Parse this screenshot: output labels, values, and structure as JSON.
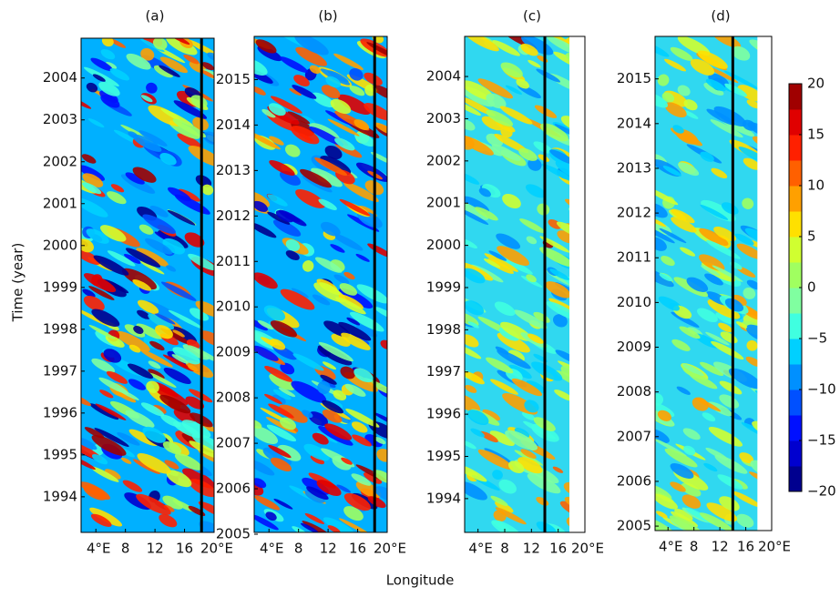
{
  "chart_data": [
    {
      "type": "hovmoller",
      "title": "(a)",
      "xlim": [
        2,
        20
      ],
      "ylim": [
        1993.15,
        2004.95
      ],
      "xticks": [
        {
          "value": 4,
          "label": "4°E"
        },
        8,
        12,
        16,
        {
          "value": 20,
          "label": "20°E"
        }
      ],
      "yticks": [
        1994,
        1995,
        1996,
        1997,
        1998,
        1999,
        2000,
        2001,
        2002,
        2003,
        2004
      ],
      "vertical_line": 18.3,
      "ylabel": "Time (year)"
    },
    {
      "type": "hovmoller",
      "title": "(b)",
      "xlim": [
        2,
        20
      ],
      "ylim": [
        2005.04,
        2015.95
      ],
      "xticks": [
        {
          "value": 4,
          "label": "4°E"
        },
        8,
        12,
        16,
        {
          "value": 20,
          "label": "20°E"
        }
      ],
      "yticks": [
        2005,
        2006,
        2007,
        2008,
        2009,
        2010,
        2011,
        2012,
        2013,
        2014,
        2015
      ],
      "vertical_line": 18.3,
      "xlabel": "Longitude"
    },
    {
      "type": "hovmoller",
      "title": "(c)",
      "xlim": [
        2,
        20
      ],
      "ylim": [
        1993.2,
        2004.95
      ],
      "xticks": [
        {
          "value": 4,
          "label": "4°E"
        },
        8,
        12,
        16,
        {
          "value": 20,
          "label": "20°E"
        }
      ],
      "yticks": [
        1994,
        1995,
        1996,
        1997,
        1998,
        1999,
        2000,
        2001,
        2002,
        2003,
        2004
      ],
      "vertical_line": 14
    },
    {
      "type": "hovmoller",
      "title": "(d)",
      "xlim": [
        2,
        20
      ],
      "ylim": [
        2004.9,
        2015.95
      ],
      "xticks": [
        {
          "value": 4,
          "label": "4°E"
        },
        8,
        12,
        16,
        {
          "value": 20,
          "label": "20°E"
        }
      ],
      "yticks": [
        2005,
        2006,
        2007,
        2008,
        2009,
        2010,
        2011,
        2012,
        2013,
        2014,
        2015
      ],
      "vertical_line": 14
    },
    {
      "type": "colorbar",
      "clim": [
        -20,
        20
      ],
      "yticks": [
        {
          "value": -20,
          "label": "−20"
        },
        {
          "value": -15,
          "label": "−15"
        },
        {
          "value": -10,
          "label": "−10"
        },
        {
          "value": -5,
          "label": "−5"
        },
        0,
        5,
        10,
        15,
        20
      ],
      "colors": [
        "#00008f",
        "#0000cf",
        "#0010ff",
        "#0050ff",
        "#0090ff",
        "#00d0ff",
        "#40ffe0",
        "#80ffa0",
        "#a0ff60",
        "#d0ff30",
        "#ffe000",
        "#ffa000",
        "#ff6000",
        "#ff2000",
        "#e00000",
        "#a00000"
      ]
    }
  ]
}
